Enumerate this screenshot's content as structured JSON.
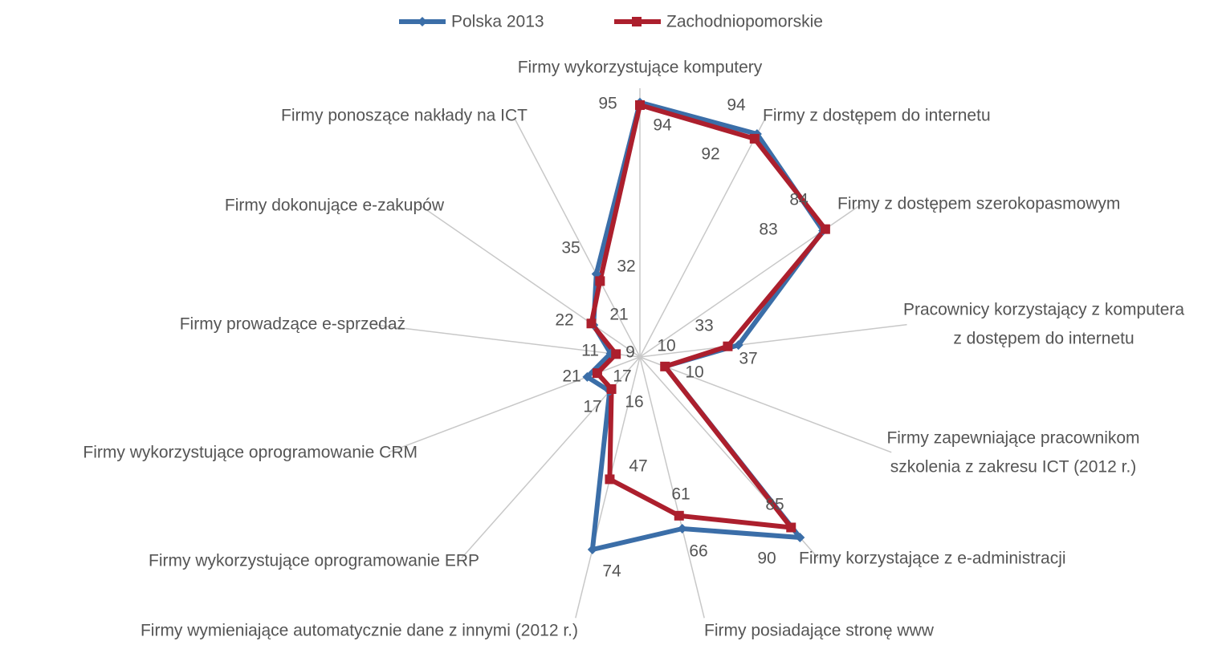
{
  "chart_data": {
    "type": "radar",
    "categories": [
      "Firmy wykorzystujące komputery",
      "Firmy z dostępem do internetu",
      "Firmy z dostępem szerokopasmowym",
      [
        "Pracownicy korzystający z komputera",
        "z dostępem do internetu"
      ],
      [
        "Firmy zapewniające pracownikom",
        "szkolenia z zakresu ICT (2012 r.)"
      ],
      "Firmy korzystające z e-administracji",
      "Firmy posiadające stronę www",
      "Firmy wymieniające automatycznie dane z innymi (2012 r.)",
      "Firmy wykorzystujące oprogramowanie ERP",
      "Firmy wykorzystujące oprogramowanie CRM",
      "Firmy prowadzące e-sprzedaż",
      "Firmy dokonujące e-zakupów",
      "Firmy ponoszące nakłady na ICT"
    ],
    "series": [
      {
        "name": "Polska 2013",
        "color": "#3b6ea8",
        "values": [
          95,
          94,
          83,
          37,
          10,
          90,
          66,
          74,
          17,
          21,
          11,
          21,
          35
        ]
      },
      {
        "name": "Zachodniopomorskie",
        "color": "#ac1f2d",
        "values": [
          94,
          92,
          84,
          33,
          10,
          85,
          61,
          47,
          16,
          17,
          9,
          22,
          32
        ]
      }
    ],
    "rlim": [
      0,
      100
    ],
    "legend": "top"
  }
}
